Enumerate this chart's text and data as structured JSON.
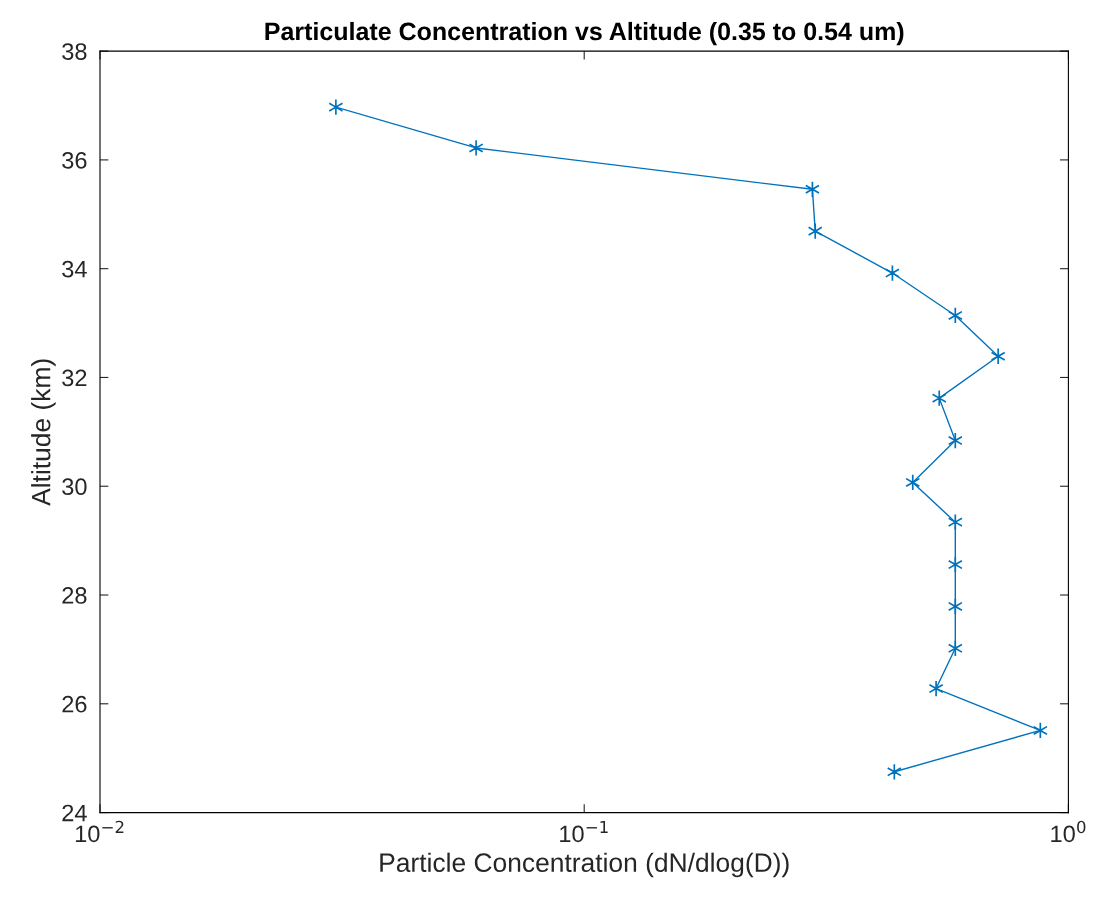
{
  "chart_data": {
    "type": "line",
    "title": "Particulate Concentration vs Altitude (0.35 to 0.54 um)",
    "xlabel": "Particle Concentration (dN/dlog(D))",
    "ylabel": "Altitude (km)",
    "log": "x",
    "marker": "cross",
    "line_style": "solid",
    "grid": false,
    "legend": false,
    "series": [
      {
        "color": "#0072bd",
        "x": [
          0.0307,
          0.0598,
          0.296,
          0.3,
          0.433,
          0.584,
          0.716,
          0.541,
          0.584,
          0.477,
          0.584,
          0.584,
          0.584,
          0.584,
          0.533,
          0.875,
          0.437
        ],
        "values": [
          36.97,
          36.22,
          35.46,
          34.69,
          33.92,
          33.14,
          32.39,
          31.62,
          30.84,
          30.07,
          29.34,
          28.56,
          27.79,
          27.02,
          26.28,
          25.51,
          24.75
        ]
      }
    ],
    "xlim": [
      0.01,
      1
    ],
    "xticks": [
      {
        "value": 0.01,
        "label": "10$^{−2}$"
      },
      {
        "value": 0.1,
        "label": "10$^{−1}$"
      },
      {
        "value": 1,
        "label": "10$^{0}$"
      }
    ],
    "ylim": [
      24,
      38
    ],
    "yticks": [
      24,
      26,
      28,
      30,
      32,
      34,
      36,
      38
    ]
  }
}
